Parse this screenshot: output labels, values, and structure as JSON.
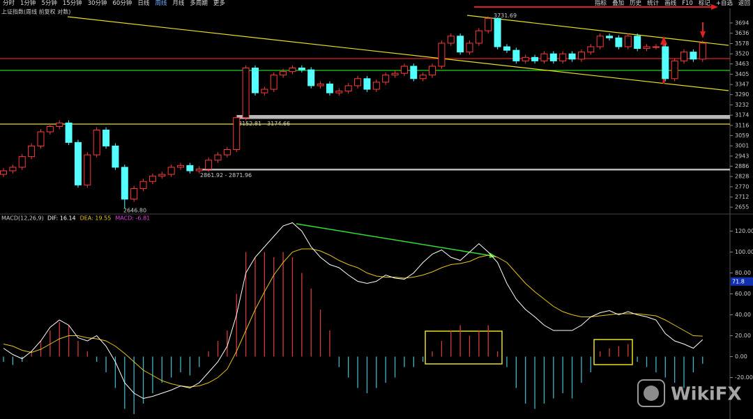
{
  "toolbar": {
    "left": [
      "分时",
      "1分钟",
      "5分钟",
      "15分钟",
      "30分钟",
      "60分钟",
      "日线",
      "周线",
      "月线",
      "多周期",
      "更多"
    ],
    "active": "周线",
    "right": [
      "指标",
      "叠加",
      "历史",
      "统计",
      "画线",
      "F10",
      "标记",
      "+自选",
      "返回"
    ]
  },
  "chart_data": [
    {
      "type": "candlestick",
      "title": "上证指数(周线 前复权 对数)",
      "open": [
        2840,
        2860,
        2880,
        2940,
        3000,
        3080,
        3110,
        3130,
        3020,
        2780,
        2950,
        3090,
        3000,
        2880,
        2700,
        2760,
        2800,
        2830,
        2840,
        2880,
        2890,
        2860,
        2870,
        2920,
        2950,
        2980,
        3160,
        3440,
        3300,
        3320,
        3400,
        3420,
        3440,
        3430,
        3340,
        3350,
        3300,
        3310,
        3340,
        3380,
        3320,
        3360,
        3400,
        3410,
        3450,
        3380,
        3400,
        3450,
        3580,
        3620,
        3530,
        3580,
        3650,
        3720,
        3560,
        3540,
        3480,
        3500,
        3480,
        3520,
        3480,
        3520,
        3490,
        3530,
        3560,
        3620,
        3610,
        3560,
        3620,
        3550,
        3560,
        3560,
        3380,
        3480,
        3530,
        3490
      ],
      "high": [
        2875,
        2895,
        2955,
        3015,
        3095,
        3125,
        3145,
        3145,
        3035,
        2965,
        3105,
        3105,
        3015,
        2895,
        2775,
        2815,
        2845,
        2855,
        2895,
        2905,
        2905,
        2885,
        2935,
        2965,
        2995,
        3175,
        3455,
        3455,
        3335,
        3415,
        3435,
        3455,
        3455,
        3445,
        3365,
        3365,
        3325,
        3355,
        3395,
        3395,
        3375,
        3415,
        3425,
        3465,
        3465,
        3415,
        3465,
        3595,
        3635,
        3635,
        3595,
        3665,
        3731.69,
        3725,
        3575,
        3555,
        3515,
        3515,
        3535,
        3535,
        3535,
        3535,
        3545,
        3575,
        3635,
        3635,
        3625,
        3635,
        3635,
        3575,
        3575,
        3575,
        3495,
        3545,
        3545,
        3595
      ],
      "low": [
        2825,
        2845,
        2865,
        2925,
        2985,
        3065,
        3095,
        3005,
        2765,
        2765,
        2935,
        2985,
        2865,
        2646.8,
        2685,
        2745,
        2785,
        2815,
        2825,
        2865,
        2845,
        2845,
        2855,
        2905,
        2935,
        2965,
        3145,
        3285,
        3285,
        3305,
        3385,
        3405,
        3415,
        3325,
        3325,
        3285,
        3285,
        3295,
        3325,
        3305,
        3305,
        3345,
        3385,
        3395,
        3365,
        3365,
        3385,
        3435,
        3565,
        3515,
        3515,
        3565,
        3635,
        3545,
        3525,
        3465,
        3465,
        3465,
        3465,
        3465,
        3465,
        3475,
        3475,
        3515,
        3545,
        3595,
        3545,
        3545,
        3535,
        3535,
        3545,
        3365,
        3365,
        3465,
        3475,
        3475
      ],
      "close": [
        2860,
        2880,
        2940,
        3000,
        3080,
        3110,
        3130,
        3020,
        2780,
        2950,
        3090,
        3000,
        2880,
        2700,
        2760,
        2800,
        2830,
        2840,
        2880,
        2890,
        2860,
        2870,
        2920,
        2950,
        2980,
        3160,
        3440,
        3300,
        3320,
        3400,
        3420,
        3440,
        3430,
        3340,
        3350,
        3300,
        3310,
        3340,
        3380,
        3320,
        3360,
        3400,
        3410,
        3450,
        3380,
        3400,
        3450,
        3580,
        3620,
        3530,
        3580,
        3650,
        3720,
        3560,
        3540,
        3480,
        3500,
        3480,
        3520,
        3480,
        3520,
        3490,
        3530,
        3560,
        3620,
        3610,
        3560,
        3620,
        3550,
        3560,
        3560,
        3380,
        3480,
        3530,
        3490,
        3580
      ],
      "up_color": "#ff3a3a",
      "down_color": "#54ffff",
      "ylim": [
        2624,
        3745
      ],
      "yticks": [
        3694,
        3636,
        3578,
        3520,
        3463,
        3405,
        3347,
        3290,
        3232,
        3174,
        3116,
        3059,
        3001,
        2943,
        2886,
        2828,
        2770,
        2712,
        2655
      ],
      "annotations": [
        {
          "label": "3731.69",
          "value": 3731.69
        },
        {
          "label": "2646.80",
          "value": 2646.8
        }
      ],
      "bands": [
        {
          "low": 3152.81,
          "high": 3174.66,
          "label": "3152.81 - 3174.66"
        },
        {
          "low": 2861.92,
          "high": 2871.96,
          "label": "2861.92 - 2871.96"
        }
      ]
    },
    {
      "type": "macd",
      "title": "MACD(12,26,9)",
      "series": [
        {
          "name": "DIF: 16.14",
          "color": "#ffffff",
          "values": [
            8,
            2,
            -2,
            5,
            15,
            28,
            35,
            30,
            18,
            15,
            20,
            10,
            -5,
            -25,
            -35,
            -40,
            -38,
            -35,
            -32,
            -28,
            -30,
            -25,
            -15,
            -5,
            10,
            40,
            80,
            95,
            105,
            115,
            125,
            128,
            120,
            105,
            95,
            88,
            85,
            78,
            72,
            70,
            72,
            78,
            75,
            74,
            80,
            90,
            98,
            102,
            95,
            92,
            100,
            108,
            100,
            90,
            70,
            55,
            45,
            38,
            30,
            25,
            25,
            25,
            30,
            38,
            42,
            44,
            40,
            43,
            40,
            38,
            35,
            22,
            15,
            12,
            8,
            16.14
          ]
        },
        {
          "name": "DEA: 19.55",
          "color": "#e6c619",
          "values": [
            12,
            10,
            6,
            4,
            7,
            12,
            17,
            20,
            20,
            18,
            17,
            15,
            10,
            3,
            -5,
            -13,
            -18,
            -23,
            -26,
            -28,
            -29,
            -28,
            -25,
            -20,
            -12,
            5,
            25,
            45,
            62,
            78,
            90,
            100,
            103,
            103,
            101,
            97,
            92,
            88,
            85,
            80,
            77,
            76,
            76,
            75,
            76,
            78,
            81,
            85,
            88,
            89,
            91,
            95,
            97,
            95,
            90,
            80,
            70,
            62,
            55,
            48,
            43,
            40,
            38,
            38,
            39,
            40,
            41,
            41,
            41,
            40,
            39,
            35,
            30,
            25,
            20,
            19.55
          ]
        },
        {
          "name": "MACD: -6.81",
          "color": "#e040e0",
          "up_color": "#d83a3a",
          "down_color": "#3fb6c6",
          "values": [
            -5,
            -8,
            -5,
            5,
            15,
            25,
            33,
            30,
            15,
            5,
            -5,
            -15,
            -30,
            -50,
            -55,
            -45,
            -35,
            -25,
            -20,
            -15,
            -18,
            -10,
            5,
            15,
            25,
            60,
            100,
            95,
            100,
            95,
            100,
            95,
            80,
            65,
            45,
            25,
            -10,
            -20,
            -30,
            -35,
            -30,
            -25,
            -20,
            -10,
            -10,
            -5,
            5,
            15,
            25,
            30,
            20,
            25,
            30,
            5,
            -10,
            -30,
            -45,
            -50,
            -45,
            -40,
            -35,
            -40,
            -25,
            -15,
            5,
            8,
            10,
            12,
            -5,
            -10,
            -15,
            -20,
            -25,
            -30,
            -15,
            -6.81
          ]
        }
      ],
      "ylim": [
        -59,
        133
      ],
      "yticks": [
        {
          "value": 120,
          "label": "120.00"
        },
        {
          "value": 100,
          "label": "100.00"
        },
        {
          "value": 80,
          "label": "80.00"
        },
        {
          "value": 60,
          "label": "60.00"
        },
        {
          "value": 40,
          "label": "40.00"
        },
        {
          "value": 20,
          "label": "20.00"
        },
        {
          "value": 0,
          "label": "0.00"
        },
        {
          "value": -20,
          "label": "-20.00"
        }
      ],
      "cursor_value": 71.8
    }
  ],
  "watermark": "WikiFX"
}
